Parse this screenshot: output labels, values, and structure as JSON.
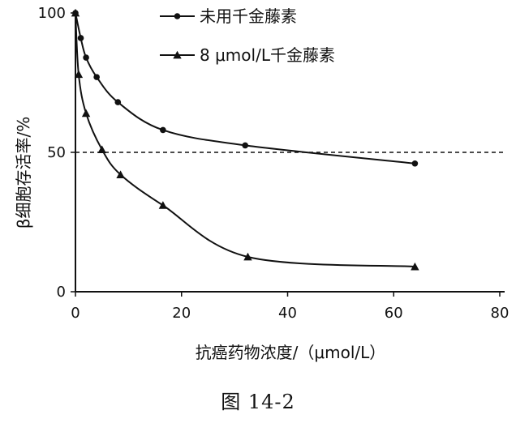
{
  "chart_data": {
    "type": "line",
    "xlabel": "抗癌药物浓度/（μmol/L）",
    "ylabel": "β细胞存活率/%",
    "xlim": [
      0,
      80
    ],
    "ylim": [
      0,
      100
    ],
    "x_ticks": [
      "0",
      "20",
      "40",
      "60",
      "80"
    ],
    "y_ticks": [
      "0",
      "50",
      "100"
    ],
    "reference_line": {
      "y": 50,
      "style": "dashed"
    },
    "legend_position": "top-center",
    "series": [
      {
        "name": "未用千金藤素",
        "marker": "circle",
        "x": [
          0,
          1,
          2,
          4,
          8,
          16.5,
          32,
          64
        ],
        "y": [
          100,
          91,
          84,
          77,
          68,
          58,
          52.5,
          46
        ]
      },
      {
        "name": "8 μmol/L千金藤素",
        "marker": "triangle",
        "x": [
          0,
          0.6,
          2,
          5,
          8.5,
          16.5,
          32.5,
          64
        ],
        "y": [
          100,
          78,
          64,
          51,
          42,
          31,
          12.5,
          9
        ]
      }
    ]
  },
  "caption": "图 14-2"
}
